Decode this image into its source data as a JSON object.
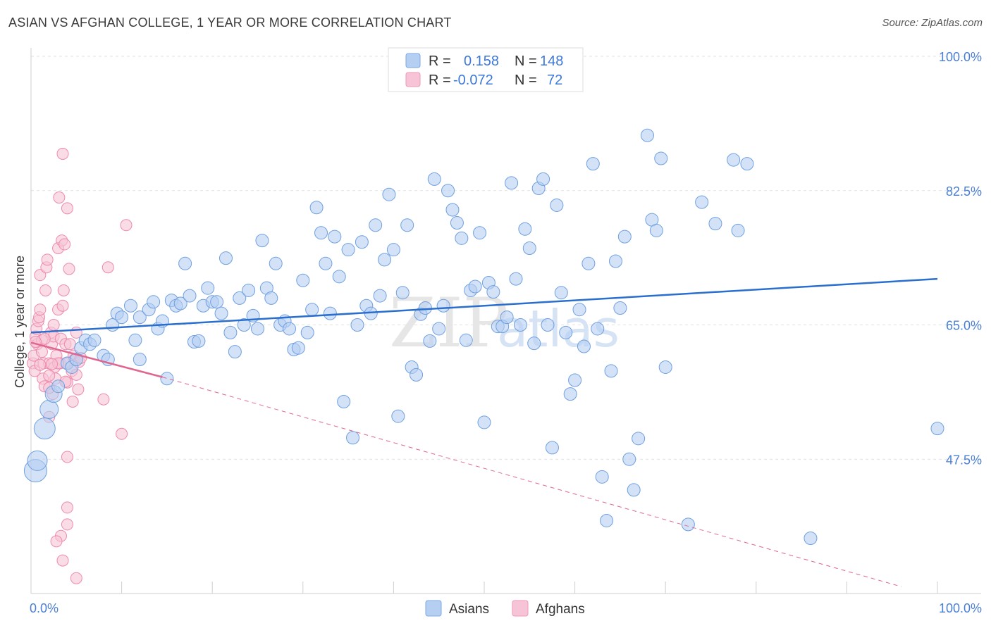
{
  "title": "ASIAN VS AFGHAN COLLEGE, 1 YEAR OR MORE CORRELATION CHART",
  "source": "Source: ZipAtlas.com",
  "watermark": {
    "zip": "ZIP",
    "atlas": "atlas"
  },
  "legend": {
    "rows": [
      {
        "r_label": "R =",
        "r_value": "0.158",
        "n_label": "N =",
        "n_value": "148",
        "color": "#a9c8f0"
      },
      {
        "r_label": "R =",
        "r_value": "-0.072",
        "n_label": "N =",
        "n_value": "72",
        "color": "#f6bcd0"
      }
    ]
  },
  "bottom_legend": [
    {
      "label": "Asians",
      "color": "#a9c8f0"
    },
    {
      "label": "Afghans",
      "color": "#f6bcd0"
    }
  ],
  "chart_data": {
    "type": "scatter",
    "ylabel": "College, 1 year or more",
    "xlim": [
      0,
      100
    ],
    "ylim": [
      30,
      100
    ],
    "x_tick_labels": [
      "0.0%",
      "100.0%"
    ],
    "y_ticks": [
      47.5,
      65.0,
      82.5,
      100.0
    ],
    "y_tick_labels": [
      "47.5%",
      "65.0%",
      "82.5%",
      "100.0%"
    ],
    "grid": true,
    "colors": {
      "asians": "#6fa0e0",
      "asians_fill": "#b5cff2",
      "asians_line": "#2a6fce",
      "afghans": "#ee8aae",
      "afghans_fill": "#f6c4d6",
      "afghans_line": "#e06690"
    },
    "series": [
      {
        "name": "Asians",
        "trend": {
          "x": [
            0,
            100
          ],
          "y": [
            64.0,
            71.0
          ]
        },
        "points": [
          [
            0.5,
            46
          ],
          [
            0.7,
            47.3
          ],
          [
            1.5,
            51.5
          ],
          [
            2,
            54
          ],
          [
            2.5,
            56
          ],
          [
            3,
            57
          ],
          [
            4,
            60
          ],
          [
            4.5,
            59.5
          ],
          [
            5,
            60.5
          ],
          [
            5.5,
            62
          ],
          [
            6,
            63
          ],
          [
            6.5,
            62.5
          ],
          [
            7,
            63
          ],
          [
            8,
            61
          ],
          [
            8.5,
            60.5
          ],
          [
            9,
            65
          ],
          [
            9.5,
            66.5
          ],
          [
            10,
            66
          ],
          [
            11,
            67.5
          ],
          [
            11.5,
            63
          ],
          [
            12,
            66
          ],
          [
            12,
            60.5
          ],
          [
            13,
            67
          ],
          [
            13.5,
            68
          ],
          [
            14,
            64.5
          ],
          [
            14.5,
            65.5
          ],
          [
            15,
            58
          ],
          [
            15.5,
            68.2
          ],
          [
            16,
            67.5
          ],
          [
            16.5,
            67.8
          ],
          [
            17,
            73
          ],
          [
            17.5,
            68.8
          ],
          [
            18,
            62.8
          ],
          [
            18.5,
            62.9
          ],
          [
            19,
            67.5
          ],
          [
            19.5,
            69.8
          ],
          [
            20,
            68
          ],
          [
            20.5,
            68
          ],
          [
            21,
            66.5
          ],
          [
            21.5,
            73.7
          ],
          [
            22,
            64
          ],
          [
            22.5,
            61.5
          ],
          [
            23,
            68.5
          ],
          [
            23.5,
            65
          ],
          [
            24,
            69.5
          ],
          [
            24.5,
            66.2
          ],
          [
            25,
            64.5
          ],
          [
            25.5,
            76
          ],
          [
            26,
            69.8
          ],
          [
            26.5,
            68.5
          ],
          [
            27,
            73
          ],
          [
            27.5,
            65
          ],
          [
            28,
            65.5
          ],
          [
            28.5,
            64.5
          ],
          [
            29,
            61.8
          ],
          [
            29.5,
            62
          ],
          [
            30,
            70.8
          ],
          [
            30.5,
            64
          ],
          [
            31,
            67
          ],
          [
            31.5,
            80.3
          ],
          [
            32,
            77
          ],
          [
            32.5,
            73
          ],
          [
            33,
            66.5
          ],
          [
            33.5,
            76.5
          ],
          [
            34,
            71.3
          ],
          [
            34.5,
            55
          ],
          [
            35,
            74.8
          ],
          [
            35.5,
            50.3
          ],
          [
            36,
            65
          ],
          [
            36.5,
            75.8
          ],
          [
            37,
            67.5
          ],
          [
            37.5,
            66.5
          ],
          [
            38,
            78
          ],
          [
            38.5,
            68.8
          ],
          [
            39,
            73.5
          ],
          [
            39.5,
            82
          ],
          [
            40,
            74.8
          ],
          [
            40.5,
            53.1
          ],
          [
            41,
            69.2
          ],
          [
            41.5,
            78
          ],
          [
            42,
            59.5
          ],
          [
            42.5,
            58.5
          ],
          [
            43,
            66.4
          ],
          [
            43.5,
            67.2
          ],
          [
            44,
            62.9
          ],
          [
            44.5,
            84
          ],
          [
            45,
            64.5
          ],
          [
            45.5,
            67.5
          ],
          [
            46,
            82.5
          ],
          [
            46.5,
            80
          ],
          [
            47,
            78.3
          ],
          [
            47.5,
            76.3
          ],
          [
            48,
            63
          ],
          [
            48.5,
            69.5
          ],
          [
            49,
            70
          ],
          [
            49.5,
            77
          ],
          [
            50,
            52.3
          ],
          [
            50.5,
            70.5
          ],
          [
            51,
            69.3
          ],
          [
            51.5,
            64.8
          ],
          [
            52,
            64.8
          ],
          [
            52.5,
            66
          ],
          [
            53,
            83.5
          ],
          [
            53.5,
            71
          ],
          [
            54,
            65
          ],
          [
            54.5,
            77.5
          ],
          [
            55,
            75
          ],
          [
            55.5,
            62.6
          ],
          [
            56,
            82.8
          ],
          [
            56.5,
            84
          ],
          [
            57,
            65
          ],
          [
            57.5,
            49
          ],
          [
            58,
            80.6
          ],
          [
            58.5,
            69.2
          ],
          [
            59,
            64
          ],
          [
            59.5,
            56
          ],
          [
            60,
            57.8
          ],
          [
            60.5,
            67
          ],
          [
            61,
            62.2
          ],
          [
            61.5,
            73
          ],
          [
            62,
            86
          ],
          [
            62.5,
            64.5
          ],
          [
            63,
            45.2
          ],
          [
            63.5,
            39.5
          ],
          [
            64,
            59
          ],
          [
            64.5,
            73.3
          ],
          [
            65,
            67.2
          ],
          [
            65.5,
            76.5
          ],
          [
            66,
            47.5
          ],
          [
            66.5,
            43.5
          ],
          [
            67,
            50.2
          ],
          [
            68,
            89.7
          ],
          [
            68.5,
            78.7
          ],
          [
            69,
            77.3
          ],
          [
            69.5,
            86.7
          ],
          [
            70,
            59.5
          ],
          [
            72.5,
            39
          ],
          [
            74,
            81
          ],
          [
            75.5,
            78.2
          ],
          [
            77.5,
            86.5
          ],
          [
            78,
            77.3
          ],
          [
            79,
            86
          ],
          [
            86,
            37.2
          ],
          [
            100,
            51.5
          ]
        ]
      },
      {
        "name": "Afghans",
        "trend": {
          "x": [
            0,
            14.5
          ],
          "y": [
            62.7,
            58.2
          ]
        },
        "trend_dashed": {
          "x": [
            14.5,
            96
          ],
          "y": [
            58.2,
            30.9
          ]
        },
        "points": [
          [
            0.2,
            60
          ],
          [
            0.3,
            61
          ],
          [
            0.4,
            59
          ],
          [
            0.5,
            63.5
          ],
          [
            0.6,
            64.5
          ],
          [
            0.7,
            62.5
          ],
          [
            0.8,
            65.5
          ],
          [
            0.9,
            66
          ],
          [
            1,
            67
          ],
          [
            1,
            71.5
          ],
          [
            1.2,
            63
          ],
          [
            1.3,
            58
          ],
          [
            1.4,
            60
          ],
          [
            1.5,
            57
          ],
          [
            1.6,
            69.5
          ],
          [
            1.7,
            72.5
          ],
          [
            1.8,
            73.5
          ],
          [
            2,
            53
          ],
          [
            2,
            60
          ],
          [
            2.2,
            64
          ],
          [
            2.3,
            62.5
          ],
          [
            2.4,
            56
          ],
          [
            2.5,
            63.5
          ],
          [
            2.6,
            59.5
          ],
          [
            2.7,
            58
          ],
          [
            2.8,
            61
          ],
          [
            3,
            67
          ],
          [
            3,
            75
          ],
          [
            3.1,
            81.6
          ],
          [
            3.2,
            60
          ],
          [
            3.3,
            63.2
          ],
          [
            3.4,
            76
          ],
          [
            3.5,
            67.5
          ],
          [
            3.6,
            69.5
          ],
          [
            3.8,
            62.5
          ],
          [
            4,
            57.5
          ],
          [
            4,
            60
          ],
          [
            4,
            80.2
          ],
          [
            4.2,
            72.3
          ],
          [
            4.3,
            62.5
          ],
          [
            4.5,
            59
          ],
          [
            4.6,
            55
          ],
          [
            4.7,
            61
          ],
          [
            4.8,
            60.5
          ],
          [
            5,
            58.5
          ],
          [
            5,
            64
          ],
          [
            5.2,
            56.6
          ],
          [
            5.3,
            60.2
          ],
          [
            5.5,
            60.7
          ],
          [
            3.7,
            75.5
          ],
          [
            3.5,
            87.3
          ],
          [
            8.5,
            72.5
          ],
          [
            10.5,
            78
          ],
          [
            8,
            55.3
          ],
          [
            10,
            50.8
          ],
          [
            4,
            47.8
          ],
          [
            4,
            41.2
          ],
          [
            4,
            39
          ],
          [
            3.3,
            37.5
          ],
          [
            2.8,
            36.8
          ],
          [
            3.5,
            34.3
          ],
          [
            5,
            32
          ],
          [
            2,
            56.8
          ],
          [
            1.5,
            63.2
          ],
          [
            2.5,
            65
          ],
          [
            3,
            60
          ],
          [
            3.8,
            57.6
          ],
          [
            1,
            59.8
          ],
          [
            2,
            58.4
          ],
          [
            1.2,
            61.5
          ],
          [
            0.5,
            62.8
          ],
          [
            2.3,
            59.9
          ]
        ]
      }
    ]
  }
}
